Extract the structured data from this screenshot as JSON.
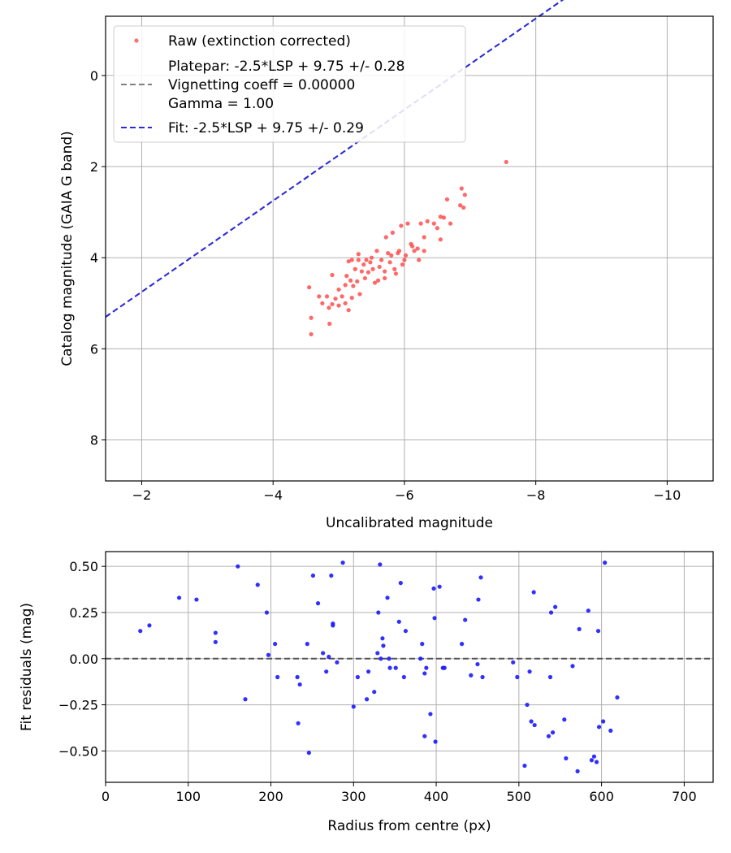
{
  "chart_data": [
    {
      "type": "scatter",
      "xlabel": "Uncalibrated magnitude",
      "ylabel": "Catalog magnitude (GAIA G band)",
      "xlim": [
        -1.45,
        -10.7
      ],
      "ylim": [
        8.9,
        -1.3
      ],
      "xticks": [
        -2,
        -4,
        -6,
        -8,
        -10
      ],
      "xtick_labels": [
        "−2",
        "−4",
        "−6",
        "−8",
        "−10"
      ],
      "yticks": [
        0,
        2,
        4,
        6,
        8
      ],
      "ytick_labels": [
        "0",
        "2",
        "4",
        "6",
        "8"
      ],
      "grid": true,
      "legend_position": "top-left",
      "legend": [
        {
          "label": "Raw (extinction corrected)",
          "style": "dot",
          "color": "#ff4d4d"
        },
        {
          "label": "Platepar: -2.5*LSP + 9.75 +/- 0.28",
          "style": "none",
          "color": ""
        },
        {
          "label": "Vignetting coeff = 0.00000",
          "style": "dash",
          "color": "#808080"
        },
        {
          "label": "Gamma = 1.00",
          "style": "none",
          "color": ""
        },
        {
          "label": "Fit: -2.5*LSP + 9.75 +/- 0.29",
          "style": "dash",
          "color": "#2b2bdc"
        }
      ],
      "lines": [
        {
          "name": "Platepar",
          "slope": -2.5,
          "intercept": 9.75,
          "color": "#808080",
          "dash": true
        },
        {
          "name": "Fit",
          "slope": -2.5,
          "intercept": 9.75,
          "color": "#2b2bdc",
          "dash": true
        }
      ],
      "series": [
        {
          "name": "Raw (extinction corrected)",
          "color": "#ff4d4d",
          "points": [
            [
              -4.55,
              4.65
            ],
            [
              -4.58,
              5.32
            ],
            [
              -4.58,
              5.68
            ],
            [
              -4.7,
              4.85
            ],
            [
              -4.75,
              5.0
            ],
            [
              -4.82,
              4.85
            ],
            [
              -4.85,
              5.1
            ],
            [
              -4.86,
              5.45
            ],
            [
              -4.9,
              4.38
            ],
            [
              -4.9,
              5.02
            ],
            [
              -4.95,
              4.9
            ],
            [
              -5.0,
              4.7
            ],
            [
              -5.0,
              5.05
            ],
            [
              -5.05,
              4.85
            ],
            [
              -5.1,
              4.6
            ],
            [
              -5.1,
              5.0
            ],
            [
              -5.12,
              4.4
            ],
            [
              -5.15,
              4.08
            ],
            [
              -5.15,
              5.15
            ],
            [
              -5.18,
              4.5
            ],
            [
              -5.2,
              4.05
            ],
            [
              -5.2,
              4.88
            ],
            [
              -5.22,
              4.62
            ],
            [
              -5.25,
              4.25
            ],
            [
              -5.28,
              4.52
            ],
            [
              -5.3,
              3.92
            ],
            [
              -5.3,
              4.05
            ],
            [
              -5.32,
              4.8
            ],
            [
              -5.35,
              4.3
            ],
            [
              -5.38,
              4.15
            ],
            [
              -5.4,
              4.45
            ],
            [
              -5.42,
              4.05
            ],
            [
              -5.45,
              4.32
            ],
            [
              -5.48,
              4.1
            ],
            [
              -5.5,
              4.0
            ],
            [
              -5.52,
              4.25
            ],
            [
              -5.55,
              4.55
            ],
            [
              -5.58,
              3.85
            ],
            [
              -5.6,
              4.5
            ],
            [
              -5.62,
              4.2
            ],
            [
              -5.65,
              4.05
            ],
            [
              -5.7,
              4.3
            ],
            [
              -5.7,
              4.45
            ],
            [
              -5.72,
              3.55
            ],
            [
              -5.75,
              3.9
            ],
            [
              -5.78,
              4.1
            ],
            [
              -5.8,
              3.95
            ],
            [
              -5.82,
              3.45
            ],
            [
              -5.85,
              4.25
            ],
            [
              -5.87,
              4.35
            ],
            [
              -5.9,
              3.9
            ],
            [
              -5.92,
              3.85
            ],
            [
              -5.95,
              3.3
            ],
            [
              -5.97,
              4.15
            ],
            [
              -6.0,
              4.05
            ],
            [
              -6.02,
              3.95
            ],
            [
              -6.05,
              3.25
            ],
            [
              -6.1,
              3.7
            ],
            [
              -6.12,
              3.75
            ],
            [
              -6.15,
              3.85
            ],
            [
              -6.2,
              3.8
            ],
            [
              -6.22,
              4.05
            ],
            [
              -6.25,
              3.25
            ],
            [
              -6.3,
              3.55
            ],
            [
              -6.3,
              3.85
            ],
            [
              -6.35,
              3.2
            ],
            [
              -6.45,
              3.25
            ],
            [
              -6.5,
              3.35
            ],
            [
              -6.55,
              3.1
            ],
            [
              -6.55,
              3.6
            ],
            [
              -6.6,
              3.12
            ],
            [
              -6.65,
              2.72
            ],
            [
              -6.7,
              3.25
            ],
            [
              -6.85,
              2.85
            ],
            [
              -6.87,
              2.48
            ],
            [
              -6.9,
              2.9
            ],
            [
              -6.92,
              2.62
            ],
            [
              -7.55,
              1.9
            ]
          ]
        }
      ]
    },
    {
      "type": "scatter",
      "xlabel": "Radius from centre (px)",
      "ylabel": "Fit residuals (mag)",
      "xlim": [
        0,
        735
      ],
      "ylim": [
        -0.67,
        0.58
      ],
      "xticks": [
        0,
        100,
        200,
        300,
        400,
        500,
        600,
        700
      ],
      "xtick_labels": [
        "0",
        "100",
        "200",
        "300",
        "400",
        "500",
        "600",
        "700"
      ],
      "yticks": [
        0.5,
        0.25,
        0.0,
        -0.25,
        -0.5
      ],
      "ytick_labels": [
        "0.50",
        "0.25",
        "0.00",
        "−0.25",
        "−0.50"
      ],
      "grid": true,
      "hline": {
        "y": 0.0,
        "color": "#555555",
        "dash": true
      },
      "series": [
        {
          "name": "Residuals",
          "color": "#1a1aff",
          "points": [
            [
              42,
              0.15
            ],
            [
              53,
              0.18
            ],
            [
              89,
              0.33
            ],
            [
              110,
              0.32
            ],
            [
              133,
              0.14
            ],
            [
              133,
              0.09
            ],
            [
              160,
              0.5
            ],
            [
              169,
              -0.22
            ],
            [
              184,
              0.4
            ],
            [
              195,
              0.25
            ],
            [
              197,
              0.02
            ],
            [
              205,
              0.08
            ],
            [
              208,
              -0.1
            ],
            [
              232,
              -0.1
            ],
            [
              233,
              -0.35
            ],
            [
              235,
              -0.14
            ],
            [
              244,
              0.08
            ],
            [
              246,
              -0.51
            ],
            [
              251,
              0.45
            ],
            [
              257,
              0.3
            ],
            [
              263,
              0.03
            ],
            [
              267,
              -0.07
            ],
            [
              270,
              0.01
            ],
            [
              273,
              0.45
            ],
            [
              275,
              0.19
            ],
            [
              275,
              0.18
            ],
            [
              280,
              -0.02
            ],
            [
              287,
              0.52
            ],
            [
              300,
              -0.26
            ],
            [
              305,
              -0.1
            ],
            [
              316,
              -0.22
            ],
            [
              318,
              -0.07
            ],
            [
              325,
              -0.18
            ],
            [
              329,
              0.03
            ],
            [
              330,
              0.25
            ],
            [
              332,
              0.51
            ],
            [
              333,
              0.0
            ],
            [
              335,
              0.11
            ],
            [
              336,
              0.07
            ],
            [
              341,
              0.33
            ],
            [
              343,
              0.0
            ],
            [
              344,
              -0.05
            ],
            [
              351,
              -0.05
            ],
            [
              355,
              0.2
            ],
            [
              357,
              0.41
            ],
            [
              361,
              -0.1
            ],
            [
              363,
              0.15
            ],
            [
              381,
              0.0
            ],
            [
              383,
              0.08
            ],
            [
              386,
              -0.08
            ],
            [
              386,
              -0.42
            ],
            [
              388,
              -0.05
            ],
            [
              393,
              -0.3
            ],
            [
              397,
              0.38
            ],
            [
              398,
              0.22
            ],
            [
              399,
              -0.45
            ],
            [
              404,
              0.39
            ],
            [
              408,
              -0.05
            ],
            [
              410,
              -0.05
            ],
            [
              431,
              0.08
            ],
            [
              435,
              0.21
            ],
            [
              442,
              -0.09
            ],
            [
              450,
              -0.03
            ],
            [
              451,
              0.32
            ],
            [
              454,
              0.44
            ],
            [
              456,
              -0.1
            ],
            [
              493,
              -0.02
            ],
            [
              498,
              -0.1
            ],
            [
              507,
              -0.58
            ],
            [
              510,
              -0.25
            ],
            [
              513,
              -0.07
            ],
            [
              515,
              -0.34
            ],
            [
              518,
              0.36
            ],
            [
              519,
              -0.36
            ],
            [
              536,
              -0.42
            ],
            [
              538,
              -0.1
            ],
            [
              539,
              0.25
            ],
            [
              541,
              -0.4
            ],
            [
              544,
              0.28
            ],
            [
              555,
              -0.33
            ],
            [
              557,
              -0.54
            ],
            [
              565,
              -0.04
            ],
            [
              571,
              -0.61
            ],
            [
              573,
              0.16
            ],
            [
              584,
              0.26
            ],
            [
              588,
              -0.55
            ],
            [
              591,
              -0.53
            ],
            [
              594,
              -0.56
            ],
            [
              596,
              0.15
            ],
            [
              597,
              -0.37
            ],
            [
              602,
              -0.34
            ],
            [
              604,
              0.52
            ],
            [
              611,
              -0.39
            ],
            [
              619,
              -0.21
            ]
          ]
        }
      ]
    }
  ]
}
